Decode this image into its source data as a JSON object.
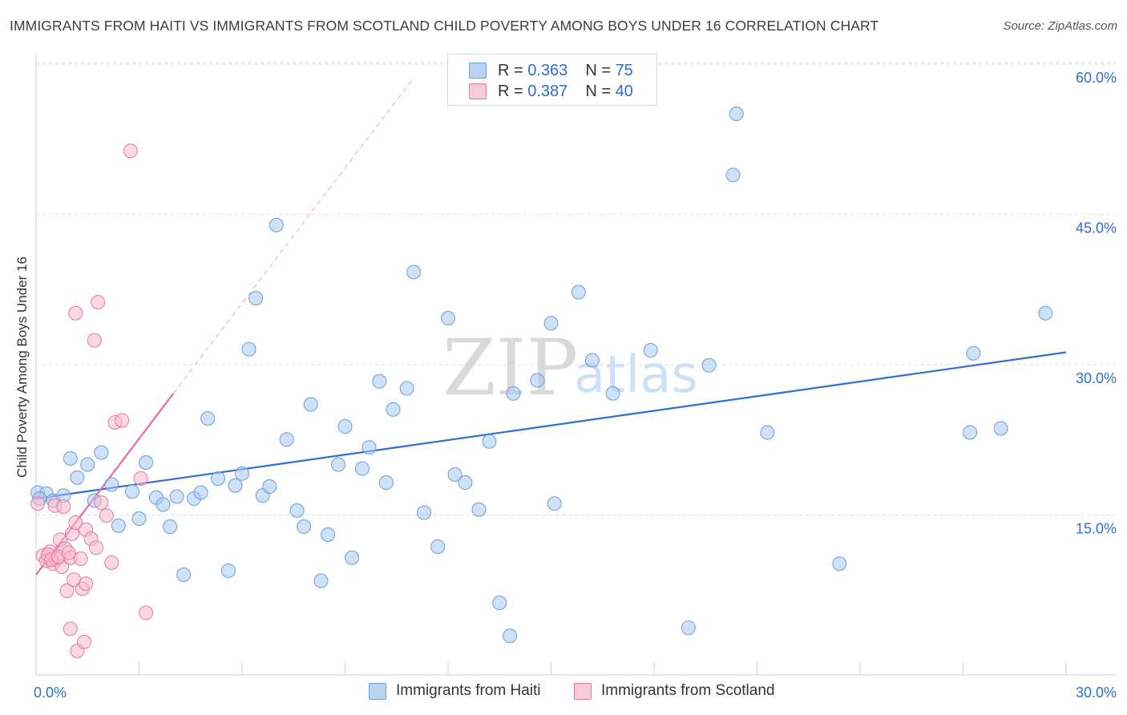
{
  "chart_data": {
    "type": "scatter",
    "title": "IMMIGRANTS FROM HAITI VS IMMIGRANTS FROM SCOTLAND CHILD POVERTY AMONG BOYS UNDER 16 CORRELATION CHART",
    "source": "Source: ZipAtlas.com",
    "xlabel": "",
    "ylabel": "Child Poverty Among Boys Under 16",
    "xlim": [
      0,
      30
    ],
    "ylim": [
      0,
      60
    ],
    "x_tick_labels": [
      "0.0%",
      "30.0%"
    ],
    "y_ticks": [
      {
        "value": 15,
        "label": "15.0%"
      },
      {
        "value": 30,
        "label": "30.0%"
      },
      {
        "value": 45,
        "label": "45.0%"
      },
      {
        "value": 60,
        "label": "60.0%"
      }
    ],
    "watermark": {
      "zip": "ZIP",
      "atlas": "atlas"
    },
    "legend_top": [
      {
        "r_label": "R = ",
        "r_value": "0.363",
        "n_label": "N = ",
        "n_value": "75"
      },
      {
        "r_label": "R = ",
        "r_value": "0.387",
        "n_label": "N = ",
        "n_value": "40"
      }
    ],
    "series": [
      {
        "name": "Immigrants from Haiti",
        "color": "#a8c8ee",
        "stroke": "#6f9ed6",
        "trend_color": "#2e6fcd",
        "trend": {
          "x0": 0,
          "y0": 18.0,
          "x1": 30,
          "y1": 32.6
        },
        "points": [
          [
            0.05,
            18.6
          ],
          [
            0.3,
            18.5
          ],
          [
            0.5,
            17.8
          ],
          [
            0.8,
            18.3
          ],
          [
            1.0,
            22.0
          ],
          [
            1.2,
            20.1
          ],
          [
            1.5,
            21.4
          ],
          [
            1.7,
            17.8
          ],
          [
            1.9,
            22.6
          ],
          [
            2.2,
            19.4
          ],
          [
            2.4,
            15.3
          ],
          [
            2.8,
            18.7
          ],
          [
            3.0,
            16.0
          ],
          [
            3.2,
            21.6
          ],
          [
            3.5,
            18.1
          ],
          [
            3.7,
            17.4
          ],
          [
            3.9,
            15.2
          ],
          [
            4.1,
            18.2
          ],
          [
            4.3,
            10.4
          ],
          [
            4.6,
            18.0
          ],
          [
            4.8,
            18.6
          ],
          [
            5.0,
            26.0
          ],
          [
            5.3,
            20.0
          ],
          [
            5.6,
            10.8
          ],
          [
            5.8,
            19.3
          ],
          [
            6.0,
            20.5
          ],
          [
            6.2,
            32.9
          ],
          [
            6.4,
            38.0
          ],
          [
            6.6,
            18.3
          ],
          [
            6.8,
            19.2
          ],
          [
            7.0,
            45.3
          ],
          [
            7.3,
            23.9
          ],
          [
            7.6,
            16.8
          ],
          [
            7.8,
            15.2
          ],
          [
            8.0,
            27.4
          ],
          [
            8.3,
            9.8
          ],
          [
            8.5,
            14.4
          ],
          [
            8.8,
            21.4
          ],
          [
            9.0,
            25.2
          ],
          [
            9.2,
            12.1
          ],
          [
            9.5,
            21.0
          ],
          [
            9.7,
            23.1
          ],
          [
            10.0,
            29.7
          ],
          [
            10.2,
            19.6
          ],
          [
            10.4,
            26.9
          ],
          [
            10.8,
            29.0
          ],
          [
            11.0,
            40.6
          ],
          [
            11.3,
            16.6
          ],
          [
            11.7,
            13.2
          ],
          [
            12.0,
            36.0
          ],
          [
            12.2,
            20.4
          ],
          [
            12.5,
            19.6
          ],
          [
            12.9,
            16.9
          ],
          [
            13.2,
            23.7
          ],
          [
            13.5,
            7.6
          ],
          [
            13.8,
            4.3
          ],
          [
            13.9,
            28.5
          ],
          [
            14.6,
            29.8
          ],
          [
            15.0,
            35.5
          ],
          [
            15.1,
            17.5
          ],
          [
            15.8,
            38.6
          ],
          [
            16.2,
            31.8
          ],
          [
            16.8,
            28.5
          ],
          [
            17.9,
            32.8
          ],
          [
            19.0,
            5.1
          ],
          [
            19.6,
            31.3
          ],
          [
            20.3,
            50.3
          ],
          [
            20.4,
            56.4
          ],
          [
            21.3,
            24.6
          ],
          [
            23.4,
            11.5
          ],
          [
            27.2,
            24.6
          ],
          [
            27.3,
            32.5
          ],
          [
            28.1,
            25.0
          ],
          [
            29.4,
            36.5
          ],
          [
            0.1,
            18.0
          ]
        ]
      },
      {
        "name": "Immigrants from Scotland",
        "color": "#f5b9cc",
        "stroke": "#e67a9c",
        "trend_color": "#e8699a",
        "trend": {
          "x0": 0,
          "y0": 10.4,
          "x1": 4.0,
          "y1": 28.5
        },
        "trend_ext": {
          "x1": 11.0,
          "y1": 60.0
        },
        "points": [
          [
            0.05,
            17.5
          ],
          [
            0.2,
            12.3
          ],
          [
            0.3,
            11.8
          ],
          [
            0.4,
            12.7
          ],
          [
            0.5,
            11.5
          ],
          [
            0.55,
            17.3
          ],
          [
            0.6,
            12.0
          ],
          [
            0.7,
            13.9
          ],
          [
            0.75,
            11.2
          ],
          [
            0.8,
            17.2
          ],
          [
            0.85,
            13.0
          ],
          [
            0.9,
            8.8
          ],
          [
            1.0,
            12.1
          ],
          [
            1.05,
            14.5
          ],
          [
            1.1,
            9.9
          ],
          [
            1.15,
            15.6
          ],
          [
            1.0,
            5.0
          ],
          [
            1.2,
            2.8
          ],
          [
            1.15,
            36.5
          ],
          [
            1.3,
            12.0
          ],
          [
            1.35,
            9.0
          ],
          [
            1.4,
            3.7
          ],
          [
            1.45,
            9.5
          ],
          [
            1.45,
            14.9
          ],
          [
            1.6,
            14.0
          ],
          [
            1.7,
            33.8
          ],
          [
            1.75,
            13.1
          ],
          [
            1.8,
            37.6
          ],
          [
            1.9,
            17.6
          ],
          [
            2.05,
            16.3
          ],
          [
            2.2,
            11.6
          ],
          [
            2.3,
            25.6
          ],
          [
            2.5,
            25.8
          ],
          [
            2.75,
            52.7
          ],
          [
            3.05,
            20.0
          ],
          [
            3.2,
            6.6
          ],
          [
            0.35,
            12.4
          ],
          [
            0.45,
            11.9
          ],
          [
            0.65,
            12.2
          ],
          [
            0.95,
            12.6
          ]
        ]
      }
    ]
  }
}
